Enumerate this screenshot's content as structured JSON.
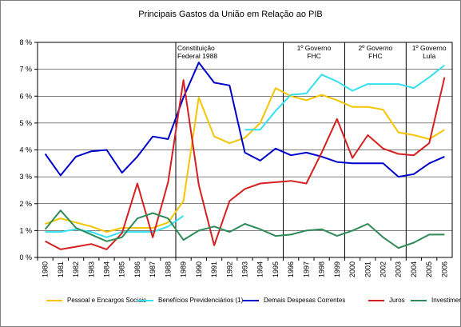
{
  "chart_data": {
    "type": "line",
    "title": "Principais Gastos da União em Relação ao PIB",
    "xlabel": "",
    "ylabel": "",
    "ylim": [
      0,
      8
    ],
    "yticks": [
      "0 %",
      "1 %",
      "2 %",
      "3 %",
      "4 %",
      "5 %",
      "6 %",
      "7 %",
      "8 %"
    ],
    "grid": "horizontal",
    "legend_position": "bottom",
    "x": [
      "1980",
      "1981",
      "1982",
      "1983",
      "1984",
      "1985",
      "1986",
      "1987",
      "1988",
      "1989",
      "1990",
      "1991",
      "1992",
      "1993",
      "1994",
      "1995",
      "1996",
      "1997",
      "1998",
      "1999",
      "2000",
      "2001",
      "2002",
      "2003",
      "2004",
      "2005",
      "2006"
    ],
    "series": [
      {
        "name": "Pessoal e Encargos Sociais",
        "color": "#f5c400",
        "values": [
          1.25,
          1.45,
          1.3,
          1.15,
          0.95,
          1.1,
          1.1,
          1.1,
          1.3,
          2.1,
          5.95,
          4.5,
          4.25,
          4.45,
          5.0,
          6.3,
          6.0,
          5.85,
          6.05,
          5.85,
          5.6,
          5.6,
          5.5,
          4.65,
          4.55,
          4.4,
          4.75
        ]
      },
      {
        "name": "Benefícios Previdenciários (1)",
        "color": "#33e0ee",
        "values": [
          0.95,
          0.95,
          1.05,
          0.95,
          0.75,
          0.95,
          0.95,
          0.95,
          1.15,
          1.55,
          null,
          null,
          null,
          4.75,
          4.75,
          5.45,
          6.05,
          6.1,
          6.8,
          6.55,
          6.2,
          6.45,
          6.45,
          6.45,
          6.3,
          6.7,
          7.15
        ]
      },
      {
        "name": "Demais Despesas Correntes",
        "color": "#0000cc",
        "values": [
          3.85,
          3.05,
          3.75,
          3.95,
          4.0,
          3.15,
          3.75,
          4.5,
          4.4,
          5.95,
          7.25,
          6.5,
          6.4,
          3.9,
          3.6,
          4.05,
          3.8,
          3.9,
          3.75,
          3.55,
          3.5,
          3.5,
          3.5,
          3.0,
          3.1,
          3.5,
          3.75
        ]
      },
      {
        "name": "Juros",
        "color": "#d42020",
        "values": [
          0.6,
          0.3,
          0.4,
          0.5,
          0.3,
          0.9,
          2.75,
          0.75,
          2.8,
          6.6,
          2.7,
          0.45,
          2.1,
          2.55,
          2.75,
          2.8,
          2.85,
          2.75,
          3.9,
          5.15,
          3.7,
          4.55,
          4.05,
          3.85,
          3.8,
          4.25,
          6.7
        ]
      },
      {
        "name": "Investimentos",
        "color": "#2e8b57",
        "values": [
          1.05,
          1.75,
          1.1,
          0.85,
          0.6,
          0.75,
          1.45,
          1.65,
          1.45,
          0.65,
          1.0,
          1.15,
          0.95,
          1.25,
          1.05,
          0.8,
          0.85,
          1.0,
          1.05,
          0.8,
          1.0,
          1.25,
          0.75,
          0.35,
          0.55,
          0.85,
          0.85
        ]
      }
    ],
    "annotations": [
      {
        "lines": [
          "Constituição",
          "Federal 1988"
        ],
        "divider_after": "1988"
      },
      {
        "lines": [
          "1º Governo",
          "FHC"
        ],
        "divider_after": "1995"
      },
      {
        "lines": [
          "2º Governo",
          "FHC"
        ],
        "divider_after": "1999"
      },
      {
        "lines": [
          "1º Governo",
          "Lula"
        ],
        "divider_after": "2003"
      }
    ]
  }
}
